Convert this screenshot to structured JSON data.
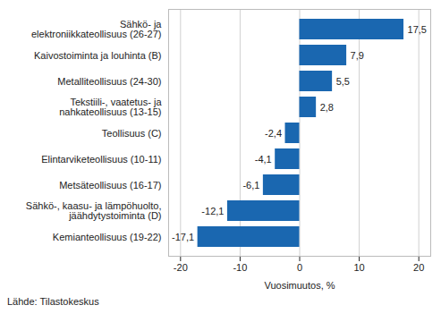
{
  "chart_data": {
    "type": "bar",
    "orientation": "horizontal",
    "categories": [
      "Sähkö- ja\nelektroniikkateollisuus (26-27)",
      "Kaivostoiminta ja louhinta (B)",
      "Metalliteollisuus (24-30)",
      "Tekstiili-, vaatetus- ja\nnahkateollisuus (13-15)",
      "Teollisuus (C)",
      "Elintarviketeollisuus (10-11)",
      "Metsäteollisuus (16-17)",
      "Sähkö-, kaasu- ja lämpöhuolto,\njäähdytystoiminta (D)",
      "Kemianteollisuus (19-22)"
    ],
    "values": [
      17.5,
      7.9,
      5.5,
      2.8,
      -2.4,
      -4.1,
      -6.1,
      -12.1,
      -17.1
    ],
    "value_labels": [
      "17,5",
      "7,9",
      "5,5",
      "2,8",
      "-2,4",
      "-4,1",
      "-6,1",
      "-12,1",
      "-17,1"
    ],
    "data_labels": true,
    "color": "#1a67b0",
    "xlabel": "Vuosimuutos, %",
    "xlim": [
      -22,
      22
    ],
    "xticks": [
      -20,
      -10,
      0,
      10,
      20
    ],
    "grid": true,
    "source": "Lähde: Tilastokeskus"
  }
}
